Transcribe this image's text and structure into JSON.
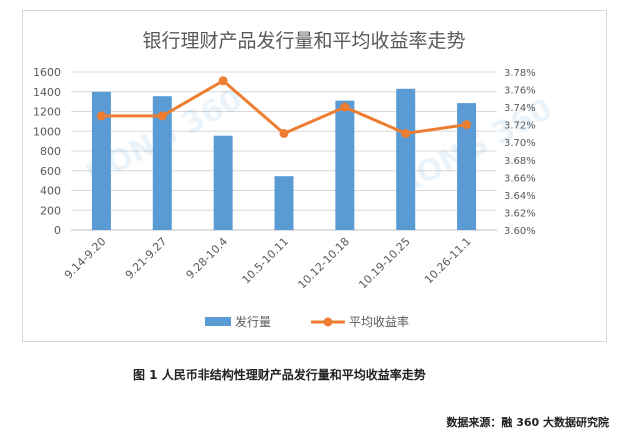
{
  "caption": "图 1  人民币非结构性理财产品发行量和平均收益率走势",
  "source": "数据来源：融 360 大数据研究院",
  "watermark": "RONG 360",
  "chart_data": {
    "type": "bar",
    "title": "银行理财产品发行量和平均收益率走势",
    "categories": [
      "9.14-9.20",
      "9.21-9.27",
      "9.28-10.4",
      "10.5-10.11",
      "10.12-10.18",
      "10.19-10.25",
      "10.26-11.1"
    ],
    "series": [
      {
        "name": "发行量",
        "type": "bar",
        "axis": "left",
        "color": "#5B9BD5",
        "values": [
          1400,
          1355,
          955,
          545,
          1310,
          1430,
          1285
        ]
      },
      {
        "name": "平均收益率",
        "type": "line",
        "axis": "right",
        "color": "#ED7D31",
        "values": [
          3.73,
          3.73,
          3.77,
          3.71,
          3.74,
          3.71,
          3.72
        ]
      }
    ],
    "y_left": {
      "min": 0,
      "max": 1600,
      "step": 200,
      "ticks": [
        "0",
        "200",
        "400",
        "600",
        "800",
        "1000",
        "1200",
        "1400",
        "1600"
      ]
    },
    "y_right": {
      "min": 3.6,
      "max": 3.78,
      "step": 0.02,
      "ticks": [
        "3.60%",
        "3.62%",
        "3.64%",
        "3.66%",
        "3.68%",
        "3.70%",
        "3.72%",
        "3.74%",
        "3.76%",
        "3.78%"
      ]
    },
    "grid": true,
    "legend_position": "bottom"
  }
}
